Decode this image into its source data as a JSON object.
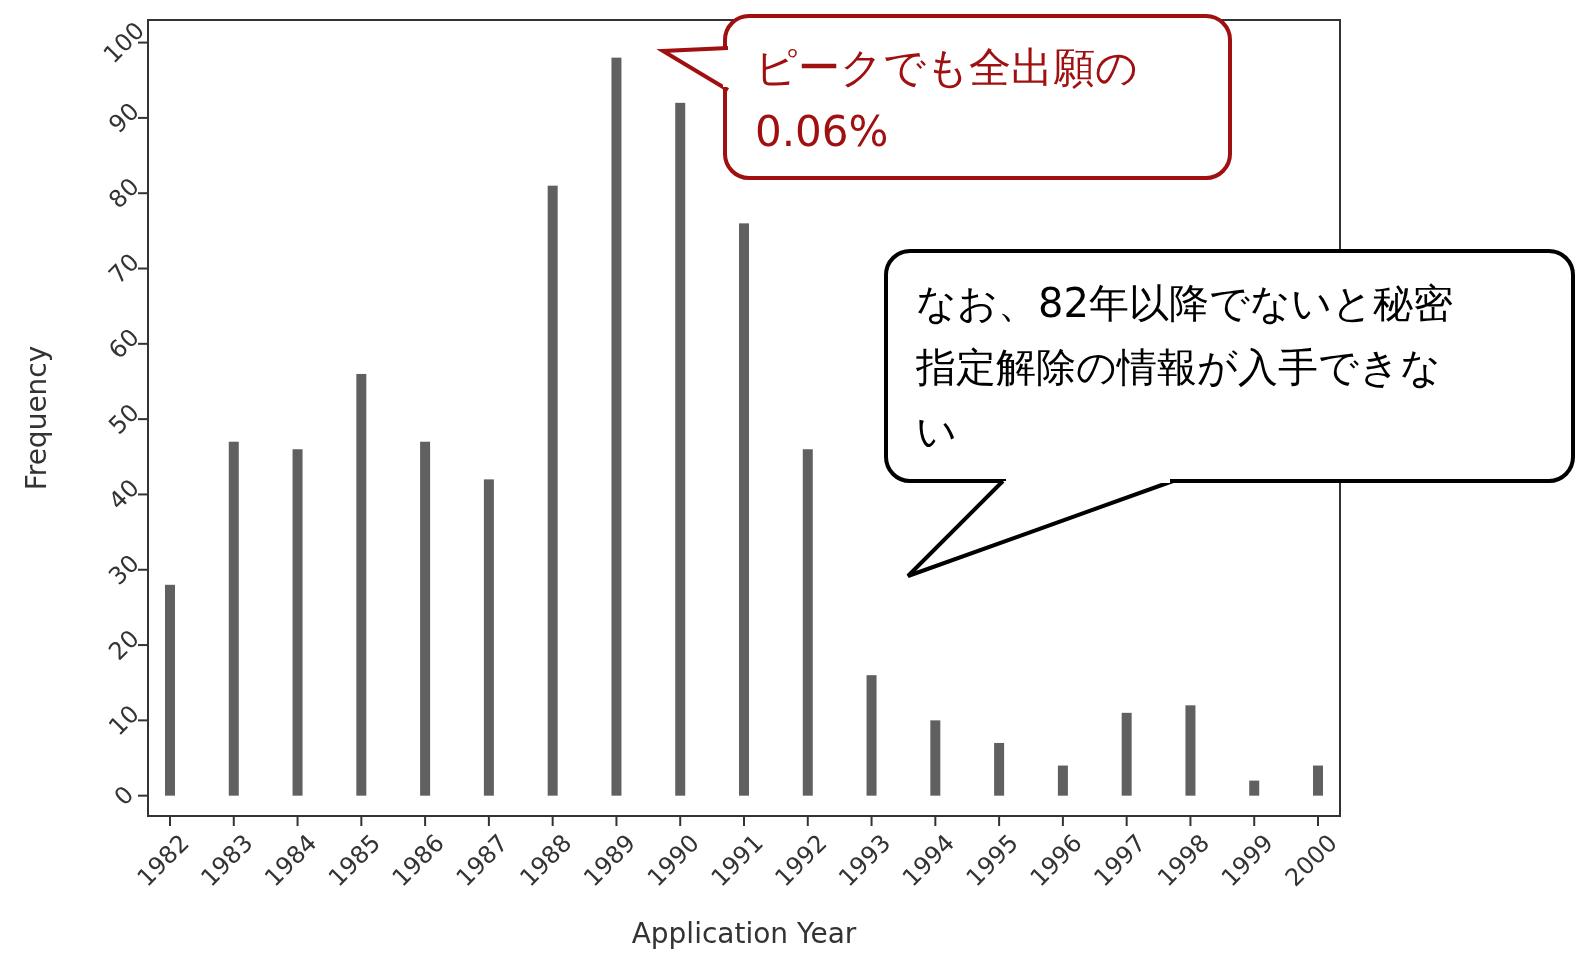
{
  "chart_data": {
    "type": "bar",
    "xlabel": "Application Year",
    "ylabel": "Frequency",
    "categories": [
      "1982",
      "1983",
      "1984",
      "1985",
      "1986",
      "1987",
      "1988",
      "1989",
      "1990",
      "1991",
      "1992",
      "1993",
      "1994",
      "1995",
      "1996",
      "1997",
      "1998",
      "1999",
      "2000"
    ],
    "values": [
      28,
      47,
      46,
      56,
      47,
      42,
      81,
      98,
      92,
      76,
      46,
      16,
      10,
      7,
      4,
      11,
      12,
      2,
      4
    ],
    "color": "#606060",
    "ylim": [
      -2.7,
      103
    ],
    "yticks": [
      0,
      10,
      20,
      30,
      40,
      50,
      60,
      70,
      80,
      90,
      100
    ],
    "grid": false,
    "annotations": [
      "ピークでも全出願の0.06%",
      "なお、82年以降でないと秘密指定解除の情報が入手できない"
    ]
  }
}
